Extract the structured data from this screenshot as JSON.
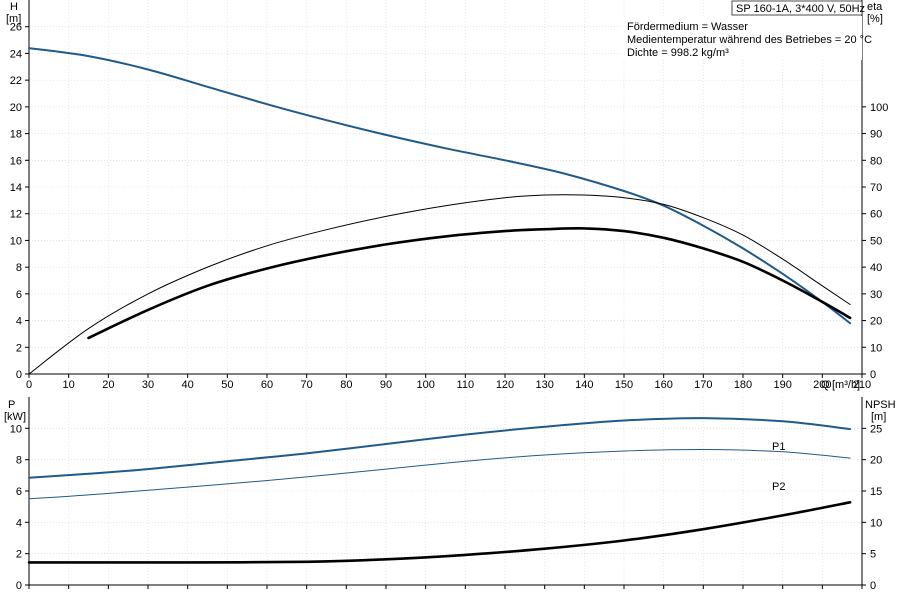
{
  "chart_data": {
    "type": "line",
    "title": "SP 160-1A, 3*400 V, 50Hz",
    "info_lines": [
      "Fördermedium = Wasser",
      "Medientemperatur während des Betriebes = 20 °C",
      "Dichte = 998.2 kg/m³"
    ],
    "top": {
      "xlabel": "Q [m³/h]",
      "xlabel_q": "Q",
      "xlabel_unit": "[m³/h]",
      "xlim": [
        0,
        210
      ],
      "xticks": [
        0,
        10,
        20,
        30,
        40,
        50,
        60,
        70,
        80,
        90,
        100,
        110,
        120,
        130,
        140,
        150,
        160,
        170,
        180,
        190,
        200,
        210
      ],
      "left_label": "H",
      "left_unit": "[m]",
      "ylim": [
        0,
        28
      ],
      "yticks": [
        0,
        2,
        4,
        6,
        8,
        10,
        12,
        14,
        16,
        18,
        20,
        22,
        24,
        26
      ],
      "right_label": "eta",
      "right_unit": "[%]",
      "y2lim": [
        0,
        140
      ],
      "y2ticks": [
        0,
        10,
        20,
        30,
        40,
        50,
        60,
        70,
        80,
        90,
        100
      ],
      "grid": true,
      "series": [
        {
          "axis": "left",
          "color": "#1f5a8c",
          "x": [
            0,
            15,
            30,
            45,
            60,
            75,
            90,
            105,
            120,
            135,
            150,
            160,
            170,
            180,
            190,
            200,
            207
          ],
          "y": [
            24.4,
            23.8,
            22.8,
            21.5,
            20.2,
            19.0,
            17.9,
            16.9,
            16.0,
            15.0,
            13.7,
            12.6,
            11.1,
            9.4,
            7.5,
            5.4,
            3.8
          ]
        },
        {
          "axis": "right",
          "color": "#000000",
          "stroke": 1,
          "x": [
            0,
            15,
            30,
            45,
            60,
            75,
            90,
            105,
            120,
            130,
            140,
            150,
            160,
            170,
            180,
            190,
            200,
            207
          ],
          "y": [
            0,
            17,
            30,
            40,
            48,
            54,
            59,
            63,
            66,
            67,
            67,
            66,
            63.5,
            58.5,
            52,
            43,
            33,
            26
          ]
        },
        {
          "axis": "right",
          "color": "#000000",
          "stroke": 2.6,
          "x": [
            15,
            30,
            45,
            60,
            75,
            90,
            105,
            120,
            130,
            140,
            150,
            160,
            170,
            180,
            190,
            200,
            207
          ],
          "y": [
            13.5,
            24,
            33,
            39.5,
            44.5,
            48.5,
            51.5,
            53.5,
            54.2,
            54.5,
            53.5,
            51,
            47,
            42,
            35,
            27,
            21
          ]
        }
      ]
    },
    "bottom": {
      "left_label": "P",
      "left_unit": "[kW]",
      "ylim": [
        0,
        12
      ],
      "yticks": [
        0,
        2,
        4,
        6,
        8,
        10
      ],
      "right_label": "NPSH",
      "right_unit": "[m]",
      "y2lim": [
        0,
        30
      ],
      "y2ticks": [
        0,
        5,
        10,
        15,
        20,
        25
      ],
      "grid": true,
      "series": [
        {
          "name": "P1",
          "axis": "left",
          "color": "#1f5a8c",
          "x": [
            0,
            15,
            30,
            50,
            70,
            90,
            110,
            130,
            150,
            170,
            190,
            207
          ],
          "y": [
            6.85,
            7.1,
            7.4,
            7.9,
            8.4,
            9.0,
            9.6,
            10.1,
            10.5,
            10.65,
            10.45,
            9.95
          ]
        },
        {
          "name": "P2",
          "axis": "left",
          "color": "#1f5a8c",
          "stroke": 1,
          "x": [
            0,
            15,
            30,
            50,
            70,
            90,
            110,
            130,
            150,
            170,
            190,
            207
          ],
          "y": [
            5.5,
            5.75,
            6.05,
            6.45,
            6.9,
            7.4,
            7.9,
            8.3,
            8.55,
            8.65,
            8.5,
            8.1
          ]
        },
        {
          "axis": "right",
          "color": "#000000",
          "stroke": 2.6,
          "x": [
            0,
            15,
            40,
            70,
            90,
            110,
            130,
            150,
            170,
            190,
            207
          ],
          "y": [
            3.6,
            3.6,
            3.6,
            3.7,
            4.1,
            4.8,
            5.8,
            7.1,
            8.9,
            11.1,
            13.2
          ]
        }
      ]
    }
  }
}
